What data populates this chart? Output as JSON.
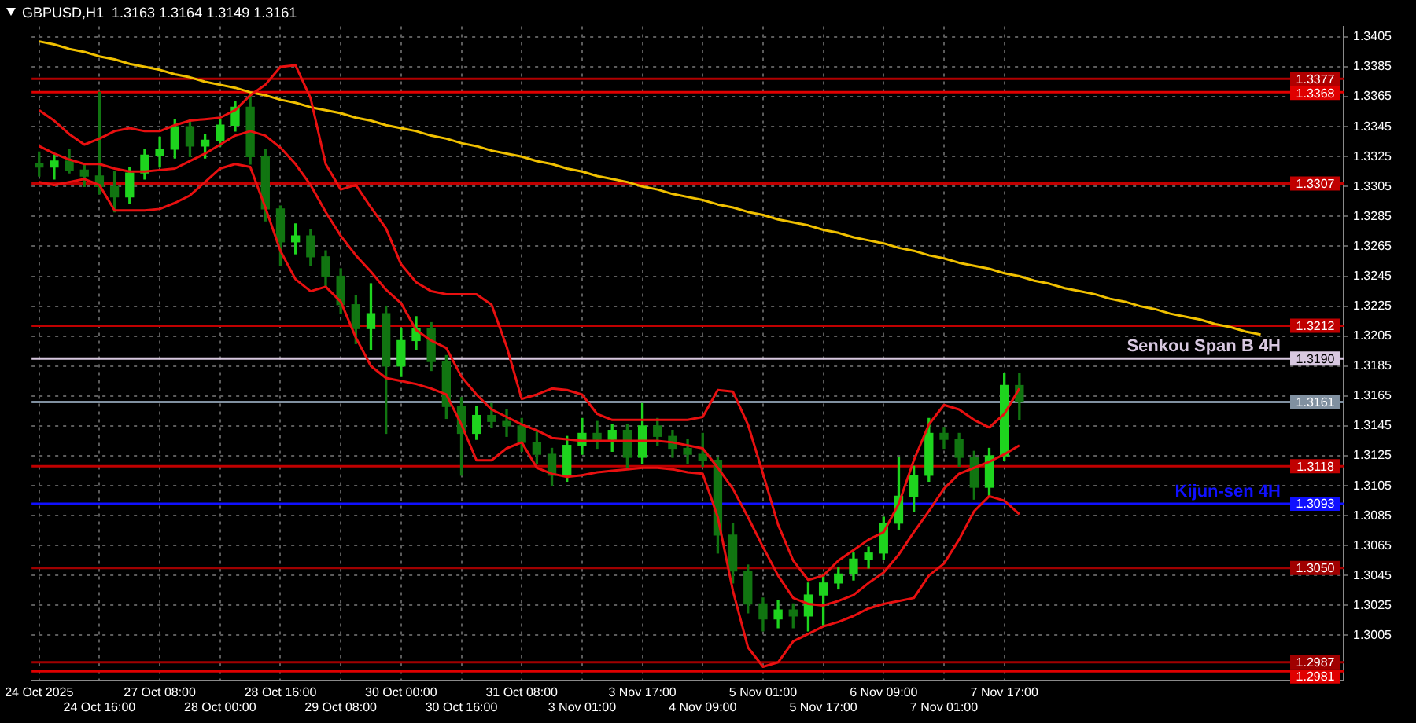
{
  "chart_data": {
    "type": "candlestick",
    "title": "GBPUSD,H1  1.3163 1.3164 1.3149 1.3161",
    "categories": [
      "24 Oct 2025",
      null,
      null,
      null,
      "24 Oct 16:00",
      null,
      null,
      null,
      "27 Oct 08:00",
      null,
      null,
      null,
      "28 Oct 00:00",
      null,
      null,
      null,
      "28 Oct 16:00",
      null,
      null,
      null,
      "29 Oct 08:00",
      null,
      null,
      null,
      "30 Oct 00:00",
      null,
      null,
      null,
      "30 Oct 16:00",
      null,
      null,
      null,
      "31 Oct 08:00",
      null,
      null,
      null,
      "3 Nov 01:00",
      null,
      null,
      null,
      "3 Nov 17:00",
      null,
      null,
      null,
      "4 Nov 09:00",
      null,
      null,
      null,
      "5 Nov 01:00",
      null,
      null,
      null,
      "5 Nov 17:00",
      null,
      null,
      null,
      "6 Nov 09:00",
      null,
      null,
      null,
      "7 Nov 01:00",
      null,
      null,
      null,
      "7 Nov 17:00",
      null,
      null,
      null,
      null,
      null,
      null,
      null,
      null,
      null,
      null,
      null,
      null,
      null,
      null,
      null,
      null,
      null,
      null,
      null,
      null,
      null,
      null
    ],
    "colors": [
      "#117511",
      "#1ed41e",
      "#117511",
      "#117511",
      "#117511",
      "#117511",
      "#1ed41e",
      "#1ed41e",
      "#1ed41e",
      "#1ed41e",
      "#117511",
      "#1ed41e",
      "#1ed41e",
      "#1ed41e",
      "#117511",
      "#117511",
      "#117511",
      "#1ed41e",
      "#117511",
      "#117511",
      "#117511",
      "#117511",
      "#1ed41e",
      "#117511",
      "#1ed41e",
      "#1ed41e",
      "#117511",
      "#117511",
      "#117511",
      "#1ed41e",
      "#117511",
      "#117511",
      "#117511",
      "#117511",
      "#117511",
      "#1ed41e",
      "#1ed41e",
      "#117511",
      "#1ed41e",
      "#117511",
      "#1ed41e",
      "#117511",
      "#117511",
      "#117511",
      "#117511",
      "#117511",
      "#117511",
      "#117511",
      "#117511",
      "#1ed41e",
      "#117511",
      "#1ed41e",
      "#1ed41e",
      "#1ed41e",
      "#1ed41e",
      "#1ed41e",
      "#1ed41e",
      "#1ed41e",
      "#1ed41e",
      "#1ed41e",
      "#117511",
      "#117511",
      "#117511",
      "#1ed41e",
      "#1ed41e",
      "#117511",
      null,
      null,
      null,
      null,
      null,
      null,
      null,
      null,
      null,
      null,
      null,
      null,
      null,
      null,
      null,
      null,
      null,
      null,
      null,
      null,
      null
    ],
    "ohlc": [
      [
        1.332,
        1.3328,
        1.3312,
        1.3318
      ],
      [
        1.3318,
        1.3326,
        1.331,
        1.3322
      ],
      [
        1.3322,
        1.333,
        1.3314,
        1.3316
      ],
      [
        1.3316,
        1.332,
        1.3305,
        1.3312
      ],
      [
        1.3312,
        1.3368,
        1.33,
        1.3305
      ],
      [
        1.3305,
        1.3315,
        1.3288,
        1.3298
      ],
      [
        1.3298,
        1.3318,
        1.3294,
        1.3314
      ],
      [
        1.3314,
        1.333,
        1.331,
        1.3326
      ],
      [
        1.3326,
        1.3338,
        1.3318,
        1.333
      ],
      [
        1.333,
        1.335,
        1.3324,
        1.3345
      ],
      [
        1.3345,
        1.335,
        1.3325,
        1.3332
      ],
      [
        1.3332,
        1.334,
        1.3324,
        1.3336
      ],
      [
        1.3336,
        1.335,
        1.3332,
        1.3346
      ],
      [
        1.3346,
        1.3362,
        1.3342,
        1.3358
      ],
      [
        1.3358,
        1.3368,
        1.332,
        1.3325
      ],
      [
        1.3325,
        1.333,
        1.3282,
        1.329
      ],
      [
        1.329,
        1.3292,
        1.3252,
        1.3268
      ],
      [
        1.3268,
        1.328,
        1.326,
        1.3272
      ],
      [
        1.3272,
        1.3276,
        1.3252,
        1.3258
      ],
      [
        1.3258,
        1.3262,
        1.3238,
        1.3245
      ],
      [
        1.3245,
        1.325,
        1.322,
        1.3226
      ],
      [
        1.3226,
        1.3232,
        1.32,
        1.321
      ],
      [
        1.321,
        1.324,
        1.3196,
        1.322
      ],
      [
        1.322,
        1.3225,
        1.314,
        1.3185
      ],
      [
        1.3185,
        1.321,
        1.3178,
        1.3202
      ],
      [
        1.3202,
        1.3218,
        1.3196,
        1.321
      ],
      [
        1.321,
        1.3214,
        1.3182,
        1.3188
      ],
      [
        1.3188,
        1.3192,
        1.315,
        1.3158
      ],
      [
        1.3158,
        1.3164,
        1.3112,
        1.314
      ],
      [
        1.314,
        1.3158,
        1.3136,
        1.3152
      ],
      [
        1.3152,
        1.316,
        1.3144,
        1.3148
      ],
      [
        1.3148,
        1.3156,
        1.3138,
        1.3145
      ],
      [
        1.3145,
        1.315,
        1.3128,
        1.3134
      ],
      [
        1.3134,
        1.3142,
        1.312,
        1.3126
      ],
      [
        1.3126,
        1.313,
        1.3105,
        1.3112
      ],
      [
        1.3112,
        1.3138,
        1.3108,
        1.3132
      ],
      [
        1.3132,
        1.315,
        1.3126,
        1.314
      ],
      [
        1.314,
        1.3148,
        1.313,
        1.3136
      ],
      [
        1.3136,
        1.3146,
        1.3128,
        1.3142
      ],
      [
        1.3142,
        1.3146,
        1.3116,
        1.3124
      ],
      [
        1.3124,
        1.316,
        1.312,
        1.3145
      ],
      [
        1.3145,
        1.315,
        1.3132,
        1.3138
      ],
      [
        1.3138,
        1.3142,
        1.3124,
        1.313
      ],
      [
        1.313,
        1.3136,
        1.312,
        1.3126
      ],
      [
        1.3126,
        1.314,
        1.3118,
        1.3122
      ],
      [
        1.3122,
        1.3124,
        1.306,
        1.3072
      ],
      [
        1.3072,
        1.308,
        1.304,
        1.3048
      ],
      [
        1.3048,
        1.3052,
        1.302,
        1.3026
      ],
      [
        1.3026,
        1.303,
        1.3008,
        1.3016
      ],
      [
        1.3016,
        1.3028,
        1.301,
        1.3022
      ],
      [
        1.3022,
        1.3026,
        1.301,
        1.3018
      ],
      [
        1.3018,
        1.304,
        1.3008,
        1.3032
      ],
      [
        1.3032,
        1.3046,
        1.3012,
        1.304
      ],
      [
        1.304,
        1.305,
        1.3036,
        1.3046
      ],
      [
        1.3046,
        1.306,
        1.3042,
        1.3056
      ],
      [
        1.3056,
        1.3064,
        1.305,
        1.306
      ],
      [
        1.306,
        1.3084,
        1.3056,
        1.308
      ],
      [
        1.308,
        1.3124,
        1.3076,
        1.3098
      ],
      [
        1.3098,
        1.3118,
        1.3088,
        1.3112
      ],
      [
        1.3112,
        1.315,
        1.3108,
        1.314
      ],
      [
        1.314,
        1.3144,
        1.313,
        1.3136
      ],
      [
        1.3136,
        1.314,
        1.3118,
        1.3124
      ],
      [
        1.3124,
        1.3128,
        1.3096,
        1.3104
      ],
      [
        1.3104,
        1.313,
        1.3098,
        1.3125
      ],
      [
        1.3125,
        1.318,
        1.3122,
        1.3172
      ],
      [
        1.3172,
        1.318,
        1.3149,
        1.3161
      ],
      null,
      null,
      null,
      null,
      null,
      null,
      null,
      null,
      null,
      null,
      null,
      null,
      null,
      null,
      null,
      null,
      null,
      null,
      null,
      null,
      null
    ],
    "series": [
      {
        "type": "line",
        "color": "#e81010",
        "values": [
          1.3356,
          1.3349,
          1.334,
          1.3333,
          1.3337,
          1.3342,
          1.3344,
          1.3342,
          1.3342,
          1.3346,
          1.3349,
          1.335,
          1.3351,
          1.3356,
          1.3366,
          1.3373,
          1.3385,
          1.3386,
          1.3364,
          1.332,
          1.3303,
          1.3306,
          1.3291,
          1.3277,
          1.3253,
          1.3241,
          1.3235,
          1.3233,
          1.3233,
          1.3233,
          1.3226,
          1.3198,
          1.3163,
          1.3166,
          1.317,
          1.3169,
          1.3166,
          1.3153,
          1.3149,
          1.3149,
          1.3149,
          1.3149,
          1.3149,
          1.3149,
          1.3151,
          1.3169,
          1.3168,
          1.3146,
          1.3113,
          1.3079,
          1.3055,
          1.3042,
          1.3045,
          1.3055,
          1.3062,
          1.3069,
          1.3074,
          1.3093,
          1.3122,
          1.3146,
          1.3159,
          1.3156,
          1.3149,
          1.3144,
          1.3153,
          1.317,
          null,
          null,
          null,
          null,
          null,
          null,
          null,
          null,
          null,
          null,
          null,
          null,
          null,
          null,
          null,
          null,
          null,
          null,
          null,
          null,
          null
        ]
      },
      {
        "type": "line",
        "color": "#e81010",
        "values": [
          1.3332,
          1.3327,
          1.3323,
          1.332,
          1.332,
          1.3317,
          1.3315,
          1.3315,
          1.3316,
          1.3317,
          1.3322,
          1.3327,
          1.3333,
          1.3339,
          1.3342,
          1.3339,
          1.3331,
          1.332,
          1.3306,
          1.3288,
          1.3272,
          1.3259,
          1.3248,
          1.3236,
          1.3227,
          1.3209,
          1.3202,
          1.3197,
          1.3178,
          1.3166,
          1.3156,
          1.3151,
          1.3146,
          1.3142,
          1.3137,
          1.3136,
          1.3135,
          1.3135,
          1.3135,
          1.3135,
          1.3135,
          1.3135,
          1.3134,
          1.3132,
          1.313,
          1.3117,
          1.3103,
          1.3084,
          1.3064,
          1.3045,
          1.303,
          1.3026,
          1.3025,
          1.3028,
          1.3032,
          1.304,
          1.3047,
          1.3059,
          1.3074,
          1.3088,
          1.3103,
          1.3113,
          1.3117,
          1.3121,
          1.3126,
          1.3132,
          null,
          null,
          null,
          null,
          null,
          null,
          null,
          null,
          null,
          null,
          null,
          null,
          null,
          null,
          null,
          null,
          null,
          null,
          null,
          null,
          null
        ]
      },
      {
        "type": "line",
        "color": "#e81010",
        "values": [
          1.3308,
          1.3306,
          1.3308,
          1.331,
          1.3306,
          1.3289,
          1.3289,
          1.3289,
          1.329,
          1.3294,
          1.3299,
          1.3308,
          1.3317,
          1.332,
          1.3318,
          1.3291,
          1.3262,
          1.3243,
          1.3235,
          1.3238,
          1.3228,
          1.3204,
          1.3185,
          1.3177,
          1.3175,
          1.3173,
          1.317,
          1.3166,
          1.3146,
          1.3122,
          1.3122,
          1.313,
          1.3134,
          1.3117,
          1.3113,
          1.3111,
          1.3112,
          1.3114,
          1.3115,
          1.3116,
          1.3117,
          1.3117,
          1.3116,
          1.3114,
          1.3113,
          1.3084,
          1.3035,
          1.2997,
          1.2984,
          1.2987,
          1.3001,
          1.3006,
          1.3011,
          1.3014,
          1.3018,
          1.3023,
          1.3026,
          1.3028,
          1.303,
          1.3045,
          1.3053,
          1.3069,
          1.3088,
          1.3098,
          1.3095,
          1.3086,
          null,
          null,
          null,
          null,
          null,
          null,
          null,
          null,
          null,
          null,
          null,
          null,
          null,
          null,
          null,
          null,
          null,
          null,
          null,
          null,
          null
        ]
      },
      {
        "type": "line",
        "color": "#f0c000",
        "values": [
          1.3402,
          1.34,
          1.3397,
          1.3395,
          1.3392,
          1.339,
          1.3387,
          1.3385,
          1.3383,
          1.338,
          1.3378,
          1.3375,
          1.3373,
          1.3371,
          1.3368,
          1.3366,
          1.3363,
          1.3361,
          1.3358,
          1.3356,
          1.3354,
          1.3351,
          1.3349,
          1.3346,
          1.3344,
          1.3342,
          1.3339,
          1.3337,
          1.3334,
          1.3332,
          1.3329,
          1.3327,
          1.3325,
          1.3322,
          1.332,
          1.3317,
          1.3315,
          1.3312,
          1.331,
          1.3308,
          1.3305,
          1.3303,
          1.33,
          1.3298,
          1.3296,
          1.3293,
          1.3291,
          1.3288,
          1.3286,
          1.3283,
          1.3281,
          1.3279,
          1.3276,
          1.3274,
          1.3271,
          1.3269,
          1.3267,
          1.3264,
          1.3262,
          1.3259,
          1.3257,
          1.3254,
          1.3252,
          1.325,
          1.3247,
          1.3245,
          1.3242,
          1.324,
          1.3237,
          1.3235,
          1.3233,
          1.323,
          1.3228,
          1.3225,
          1.3223,
          1.322,
          1.3218,
          1.3216,
          1.3213,
          1.3211,
          1.3208,
          1.3206,
          null,
          null,
          null,
          null,
          null
        ]
      }
    ],
    "ylim": [
      1.2975,
      1.3412
    ],
    "yticks": [
      1.3005,
      1.3025,
      1.3045,
      1.3065,
      1.3085,
      1.3105,
      1.3125,
      1.3145,
      1.3165,
      1.3185,
      1.3205,
      1.3225,
      1.3245,
      1.3265,
      1.3285,
      1.3305,
      1.3325,
      1.3345,
      1.3365,
      1.3385,
      1.3405
    ],
    "ref_lines": [
      {
        "axis": "y",
        "value": 1.3377,
        "label": "1.3377",
        "color": "#b00000"
      },
      {
        "axis": "y",
        "value": 1.3368,
        "label": "1.3368",
        "color": "#e00000"
      },
      {
        "axis": "y",
        "value": 1.3307,
        "label": "1.3307",
        "color": "#c00000"
      },
      {
        "axis": "y",
        "value": 1.3212,
        "label": "1.3212",
        "color": "#c00000"
      },
      {
        "axis": "y",
        "value": 1.319,
        "label": "1.3190",
        "color": "#d8c8e0"
      },
      {
        "axis": "y",
        "value": 1.3161,
        "label": "1.3161",
        "color": "#8090a0"
      },
      {
        "axis": "y",
        "value": 1.3118,
        "label": "1.3118",
        "color": "#c00000"
      },
      {
        "axis": "y",
        "value": 1.3093,
        "label": "1.3093",
        "color": "#1010ff"
      },
      {
        "axis": "y",
        "value": 1.305,
        "label": "1.3050",
        "color": "#a00000"
      },
      {
        "axis": "y",
        "value": 1.2987,
        "label": "1.2987",
        "color": "#a00000"
      },
      {
        "axis": "y",
        "value": 1.2981,
        "label": "1.2981",
        "color": "#e00000"
      }
    ],
    "annotations": [
      {
        "text": "Senkou Span B 4H",
        "y": 1.319
      },
      {
        "text": "Kijun-sen 4H",
        "y": 1.3093
      }
    ],
    "grid": true,
    "marker": "none"
  }
}
